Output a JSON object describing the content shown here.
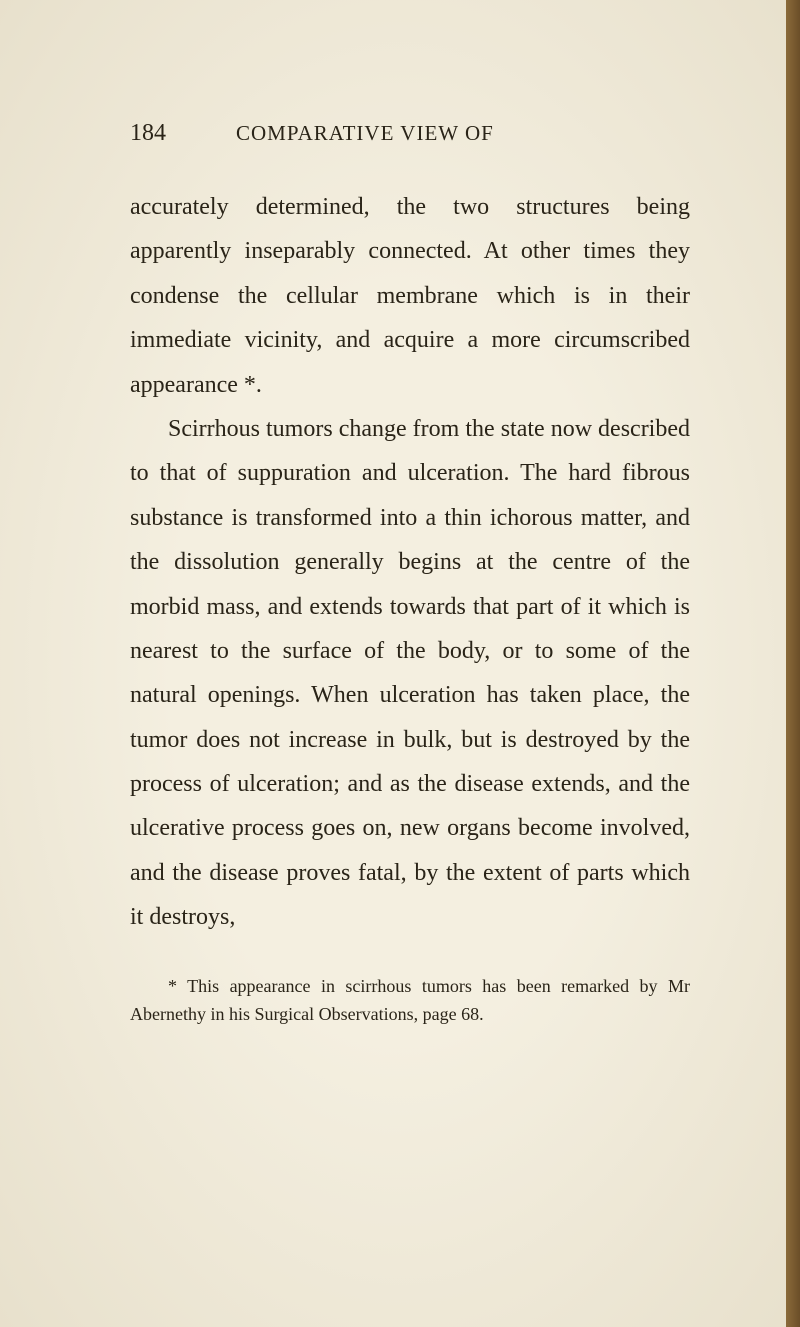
{
  "page_number": "184",
  "page_title": "COMPARATIVE VIEW OF",
  "paragraphs": {
    "p1": "accurately determined, the two structures being apparently inseparably connected. At other times they condense the cellular membrane which is in their immediate vicinity, and acquire a more circumscribed appearance *.",
    "p2": "Scirrhous tumors change from the state now described to that of suppuration and ulceration. The hard fibrous substance is transformed into a thin ichorous matter, and the dissolution generally begins at the centre of the morbid mass, and extends towards that part of it which is nearest to the surface of the body, or to some of the natural openings. When ulceration has taken place, the tumor does not increase in bulk, but is destroyed by the process of ulceration; and as the disease extends, and the ulcerative process goes on, new organs become involved, and the disease proves fatal, by the extent of parts which it destroys,"
  },
  "footnote": "* This appearance in scirrhous tumors has been remarked by Mr Abernethy in his Surgical Observations, page 68."
}
